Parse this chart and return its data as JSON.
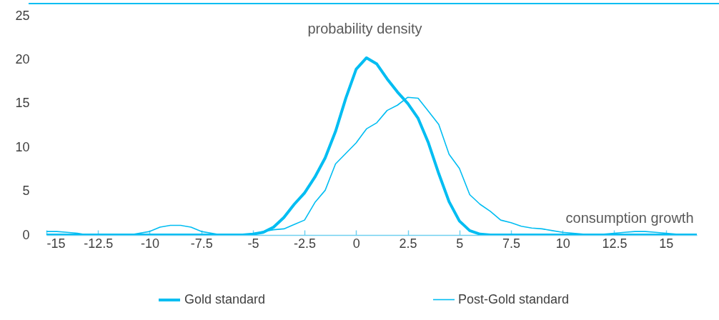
{
  "chart_data": {
    "type": "line",
    "xlabel": "consumption growth",
    "ylabel": "probability density",
    "x": [
      -15,
      -14.5,
      -14,
      -13.5,
      -13,
      -12.5,
      -12,
      -11.5,
      -11,
      -10.5,
      -10,
      -9.5,
      -9,
      -8.5,
      -8,
      -7.5,
      -7,
      -6.5,
      -6,
      -5.5,
      -5,
      -4.5,
      -4,
      -3.5,
      -3,
      -2.5,
      -2,
      -1.5,
      -1,
      -0.5,
      0,
      0.5,
      1,
      1.5,
      2,
      2.5,
      3,
      3.5,
      4,
      4.5,
      5,
      5.5,
      6,
      6.5,
      7,
      7.5,
      8,
      8.5,
      9,
      9.5,
      10,
      10.5,
      11,
      11.5,
      12,
      12.5,
      13,
      13.5,
      14,
      14.5,
      15,
      15.5,
      16,
      16.5
    ],
    "series": [
      {
        "name": "Gold standard",
        "color": "#00bdf2",
        "values": [
          0,
          0,
          0,
          0,
          0,
          0,
          0,
          0,
          0,
          0,
          0,
          0,
          0,
          0,
          0,
          0,
          0,
          0,
          0,
          0,
          0.1,
          0.3,
          0.9,
          2.0,
          3.5,
          4.8,
          6.6,
          8.8,
          11.8,
          15.6,
          18.9,
          20.2,
          19.5,
          17.8,
          16.3,
          15.0,
          13.3,
          10.5,
          7.0,
          3.8,
          1.6,
          0.5,
          0.1,
          0,
          0,
          0,
          0,
          0,
          0,
          0,
          0,
          0,
          0,
          0,
          0,
          0,
          0,
          0,
          0,
          0,
          0,
          0,
          0,
          0
        ]
      },
      {
        "name": "Post-Gold standard",
        "color": "#00bdf2",
        "values": [
          0.4,
          0.4,
          0.3,
          0.2,
          0,
          0,
          0,
          0,
          0,
          0.2,
          0.4,
          0.9,
          1.1,
          1.1,
          0.9,
          0.4,
          0.2,
          0,
          0,
          0,
          0.1,
          0.4,
          0.6,
          0.7,
          1.2,
          1.7,
          3.7,
          5.1,
          8.1,
          9.3,
          10.5,
          12.1,
          12.8,
          14.2,
          14.8,
          15.7,
          15.6,
          14.1,
          12.6,
          9.2,
          7.6,
          4.6,
          3.5,
          2.7,
          1.7,
          1.4,
          1.0,
          0.8,
          0.7,
          0.5,
          0.3,
          0.2,
          0.1,
          0.1,
          0.1,
          0.2,
          0.3,
          0.4,
          0.4,
          0.3,
          0.2,
          0.1,
          0,
          0
        ]
      }
    ],
    "xlim": [
      -15,
      16.5
    ],
    "xticks": [
      -15,
      -12.5,
      -10,
      -7.5,
      -5,
      -2.5,
      0,
      2.5,
      5,
      7.5,
      10,
      12.5,
      15
    ],
    "ylim": [
      0,
      25
    ],
    "yticks": [
      0,
      5,
      10,
      15,
      20,
      25
    ],
    "grid": false,
    "legend": "bottom",
    "line_style": "solid"
  }
}
